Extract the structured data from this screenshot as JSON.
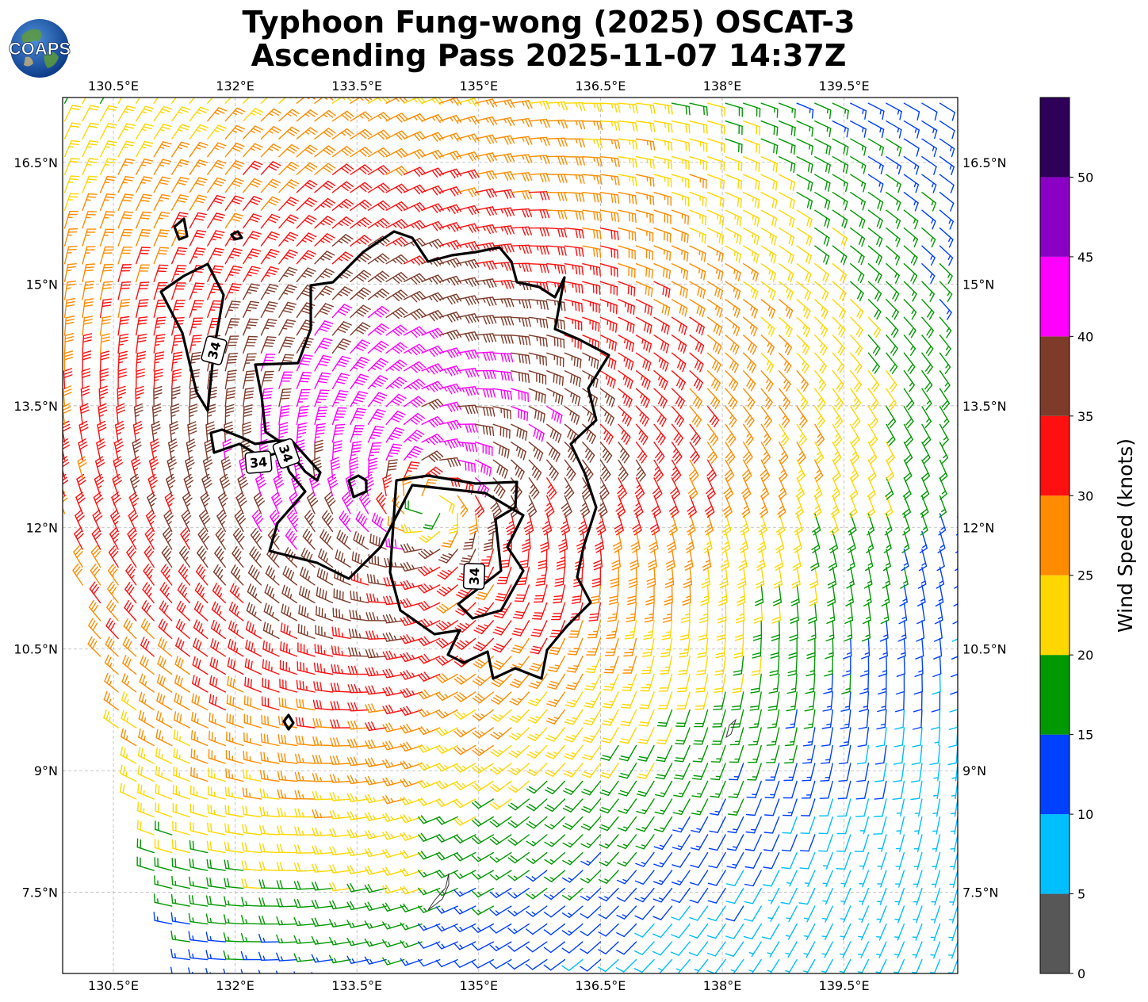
{
  "title": {
    "line1": "Typhoon Fung-wong (2025) OSCAT-3",
    "line2": "Ascending Pass 2025-11-07 14:37Z"
  },
  "logo": {
    "text": "COAPS"
  },
  "chart_data": {
    "type": "wind-barb-map",
    "title": "Typhoon Fung-wong (2025) OSCAT-3 Ascending Pass 2025-11-07 14:37Z",
    "lon_ticks": [
      "130.5°E",
      "132°E",
      "133.5°E",
      "135°E",
      "136.5°E",
      "138°E",
      "139.5°E"
    ],
    "lon_values": [
      130.5,
      132,
      133.5,
      135,
      136.5,
      138,
      139.5
    ],
    "lat_ticks": [
      "16.5°N",
      "15°N",
      "13.5°N",
      "12°N",
      "10.5°N",
      "9°N",
      "7.5°N"
    ],
    "lat_values": [
      16.5,
      15,
      13.5,
      12,
      10.5,
      9,
      7.5
    ],
    "xlim": [
      129.875,
      140.9
    ],
    "ylim": [
      6.5,
      17.3
    ],
    "grid": true,
    "storm_center": {
      "lon": 134.4,
      "lat": 12.3
    },
    "contour_level_label": "34",
    "colorbar": {
      "label": "Wind Speed (knots)",
      "bounds": [
        0,
        5,
        10,
        15,
        20,
        25,
        30,
        35,
        40,
        45,
        50,
        55
      ],
      "tick_labels": [
        "0",
        "5",
        "10",
        "15",
        "20",
        "25",
        "30",
        "35",
        "40",
        "45",
        "50"
      ],
      "colors": [
        "#575757",
        "#00bfff",
        "#0040ff",
        "#009900",
        "#ffd700",
        "#ff8c00",
        "#ff1010",
        "#7f3b2a",
        "#ff00ff",
        "#8a00c4",
        "#2e0057"
      ]
    }
  }
}
